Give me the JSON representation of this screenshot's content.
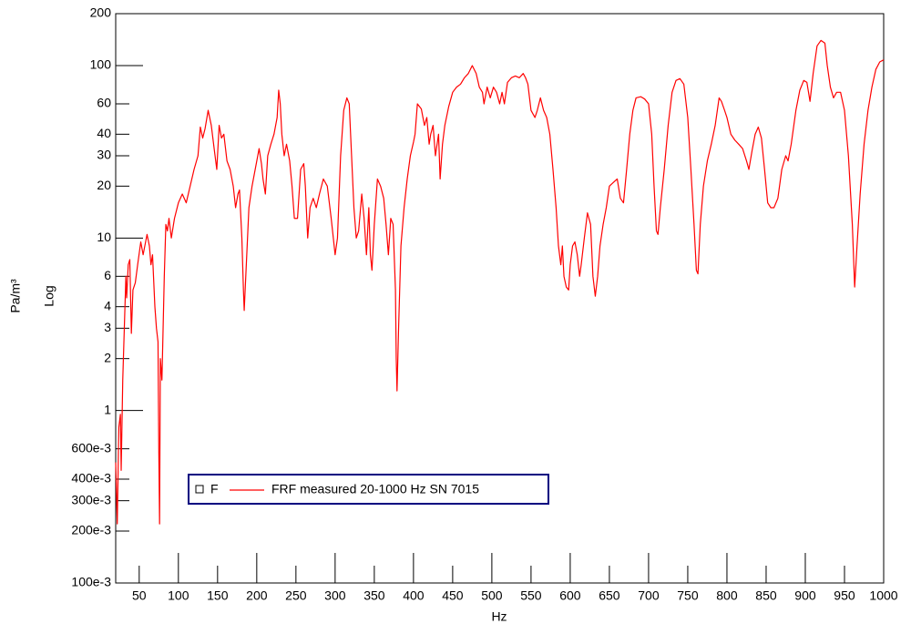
{
  "chart_data": {
    "type": "line",
    "x_label": "Hz",
    "y_label": "Pa/m³",
    "y_scale_label": "Log",
    "log_y": true,
    "legend_marker_label": "F",
    "xlim": [
      20,
      1000
    ],
    "ylim": [
      0.1,
      200
    ],
    "xticks": [
      50,
      100,
      150,
      200,
      250,
      300,
      350,
      400,
      450,
      500,
      550,
      600,
      650,
      700,
      750,
      800,
      850,
      900,
      950,
      1000
    ],
    "yticks": [
      200,
      100,
      60,
      40,
      30,
      20,
      10,
      6,
      4,
      3,
      2,
      1,
      {
        "value": 0.6,
        "label": "600e-3"
      },
      {
        "value": 0.4,
        "label": "400e-3"
      },
      {
        "value": 0.3,
        "label": "300e-3"
      },
      {
        "value": 0.2,
        "label": "200e-3"
      },
      {
        "value": 0.1,
        "label": "100e-3"
      }
    ],
    "x": [
      20,
      22,
      24,
      26,
      27,
      29,
      31,
      33,
      34,
      36,
      38,
      40,
      42,
      45,
      48,
      52,
      55,
      60,
      63,
      65,
      67,
      70,
      72,
      74,
      75,
      76,
      77,
      79,
      82,
      84,
      86,
      88,
      91,
      95,
      100,
      105,
      110,
      115,
      120,
      125,
      128,
      131,
      134,
      138,
      142,
      146,
      149,
      152,
      155,
      158,
      162,
      166,
      170,
      173,
      176,
      178,
      181,
      183,
      184,
      186,
      190,
      194,
      198,
      203,
      206,
      208,
      211,
      214,
      218,
      222,
      226,
      228,
      230,
      232,
      235,
      238,
      242,
      245,
      248,
      252,
      256,
      260,
      262,
      265,
      268,
      272,
      276,
      280,
      285,
      290,
      295,
      300,
      303,
      307,
      311,
      315,
      318,
      321,
      324,
      327,
      330,
      334,
      337,
      340,
      343,
      345,
      347,
      350,
      354,
      358,
      362,
      365,
      368,
      371,
      374,
      377,
      378,
      379,
      381,
      384,
      388,
      392,
      396,
      400,
      402,
      405,
      410,
      414,
      417,
      420,
      422,
      425,
      428,
      432,
      434,
      437,
      440,
      445,
      450,
      455,
      460,
      465,
      470,
      475,
      480,
      484,
      488,
      490,
      494,
      498,
      502,
      506,
      510,
      513,
      516,
      520,
      525,
      530,
      535,
      540,
      543,
      546,
      550,
      555,
      558,
      562,
      566,
      570,
      574,
      578,
      582,
      585,
      588,
      590,
      592,
      595,
      598,
      600,
      603,
      606,
      609,
      612,
      614,
      618,
      622,
      626,
      629,
      632,
      635,
      638,
      642,
      646,
      650,
      655,
      660,
      664,
      668,
      672,
      676,
      680,
      684,
      690,
      695,
      700,
      704,
      707,
      710,
      712,
      715,
      720,
      725,
      730,
      735,
      740,
      745,
      750,
      754,
      758,
      761,
      763,
      766,
      770,
      775,
      780,
      785,
      790,
      793,
      797,
      800,
      805,
      810,
      815,
      820,
      825,
      828,
      832,
      836,
      840,
      844,
      848,
      852,
      856,
      860,
      865,
      870,
      875,
      878,
      882,
      888,
      893,
      898,
      902,
      906,
      910,
      915,
      920,
      925,
      928,
      932,
      936,
      940,
      945,
      950,
      955,
      960,
      963,
      966,
      970,
      975,
      980,
      985,
      990,
      995,
      1000
    ],
    "series": [
      {
        "name": "FRF measured 20-1000 Hz SN 7015",
        "color": "#ff0000",
        "values": [
          0.5,
          0.22,
          0.8,
          0.95,
          0.45,
          1.5,
          3,
          6,
          4.5,
          7,
          7.5,
          2.8,
          5,
          5.5,
          7,
          9.5,
          8,
          10.5,
          9,
          7,
          8,
          4,
          3,
          2.5,
          0.6,
          0.22,
          2,
          1.5,
          6,
          12,
          11,
          13,
          10,
          13,
          16,
          18,
          16,
          20,
          25,
          30,
          44,
          38,
          43,
          55,
          45,
          32,
          25,
          45,
          38,
          40,
          28,
          25,
          20,
          15,
          18,
          19,
          10,
          5,
          3.8,
          6,
          15,
          20,
          25,
          33,
          27,
          22,
          18,
          30,
          35,
          40,
          50,
          72,
          60,
          40,
          30,
          35,
          28,
          20,
          13,
          13,
          25,
          27,
          20,
          10,
          15,
          17,
          15,
          18,
          22,
          20,
          13,
          8,
          10,
          30,
          55,
          65,
          60,
          30,
          15,
          10,
          11,
          18,
          13,
          8,
          15,
          8,
          6.5,
          12,
          22,
          20,
          17,
          12,
          8,
          13,
          12,
          5,
          2,
          1.3,
          3,
          9,
          15,
          22,
          30,
          36,
          40,
          60,
          56,
          45,
          50,
          35,
          40,
          45,
          30,
          40,
          22,
          35,
          45,
          58,
          70,
          75,
          78,
          85,
          90,
          100,
          90,
          75,
          70,
          60,
          75,
          65,
          75,
          70,
          60,
          70,
          60,
          80,
          85,
          87,
          85,
          90,
          85,
          78,
          55,
          50,
          55,
          65,
          55,
          50,
          40,
          25,
          15,
          9,
          7,
          9,
          6,
          5.2,
          5,
          7,
          9,
          9.5,
          8,
          6,
          7,
          10,
          14,
          12,
          6,
          4.6,
          6,
          9,
          12,
          15,
          20,
          21,
          22,
          17,
          16,
          25,
          40,
          55,
          65,
          66,
          64,
          60,
          40,
          20,
          11,
          10.5,
          15,
          25,
          45,
          70,
          82,
          84,
          78,
          50,
          25,
          12,
          6.5,
          6.2,
          12,
          20,
          28,
          35,
          45,
          65,
          62,
          55,
          50,
          40,
          37,
          35,
          33,
          28,
          25,
          32,
          40,
          44,
          38,
          25,
          16,
          15,
          15,
          17,
          25,
          30,
          28,
          35,
          55,
          72,
          82,
          80,
          62,
          90,
          130,
          140,
          135,
          100,
          75,
          65,
          70,
          70,
          55,
          30,
          12,
          5.2,
          9,
          18,
          35,
          55,
          75,
          95,
          105,
          108
        ]
      }
    ]
  }
}
